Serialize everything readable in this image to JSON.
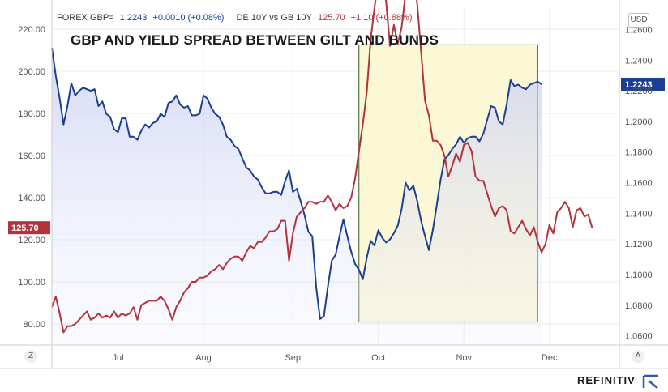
{
  "legend": {
    "gbp_name": "FOREX GBP=",
    "gbp_value": "1.2243",
    "gbp_change": "+0.0010 (+0.08%)",
    "spread_name": "DE 10Y vs GB 10Y",
    "spread_value": "125.70",
    "spread_change": "+1.10 (+0.88%)"
  },
  "currency_button": "USD",
  "scale_button_left": "Z",
  "scale_button_right": "A",
  "brand": "REFINITIV",
  "colors": {
    "gbp": "#1c3f94",
    "spread": "#b2333d",
    "highlight_fill": "#fbf7cf",
    "highlight_stroke": "#3a5a2a",
    "gbp_label_bg": "#1c3f94",
    "spread_label_bg": "#b2333d"
  },
  "chart_data": {
    "type": "line",
    "title": "GBP AND YIELD SPREAD BETWEEN GILT AND BUNDS",
    "x_tick_labels": [
      "Jul",
      "Aug",
      "Sep",
      "Oct",
      "Nov",
      "Dec"
    ],
    "x_tick_index": [
      17,
      39,
      62,
      84,
      106,
      128
    ],
    "left_axis": {
      "range": [
        70,
        230
      ],
      "ticks": [
        "80.00",
        "100.00",
        "120.00",
        "140.00",
        "160.00",
        "180.00",
        "200.00",
        "220.00"
      ],
      "current_label": "125.70"
    },
    "right_axis": {
      "range": [
        1.054,
        1.274
      ],
      "ticks": [
        "1.0600",
        "1.0800",
        "1.1000",
        "1.1200",
        "1.1400",
        "1.1600",
        "1.1800",
        "1.2000",
        "1.2200",
        "1.2400",
        "1.2600"
      ],
      "current_label": "1.2243"
    },
    "highlight": {
      "x_from": 79,
      "x_to": 125,
      "y_from": 1.069,
      "y_to": 1.25
    },
    "grid": true,
    "series": [
      {
        "name": "FOREX GBP=",
        "axis": "right",
        "values": [
          1.248,
          1.23,
          1.215,
          1.198,
          1.21,
          1.225,
          1.217,
          1.22,
          1.222,
          1.221,
          1.22,
          1.221,
          1.21,
          1.213,
          1.205,
          1.203,
          1.195,
          1.193,
          1.202,
          1.202,
          1.19,
          1.19,
          1.188,
          1.194,
          1.198,
          1.196,
          1.199,
          1.2,
          1.205,
          1.203,
          1.212,
          1.213,
          1.217,
          1.211,
          1.209,
          1.21,
          1.204,
          1.204,
          1.205,
          1.217,
          1.215,
          1.209,
          1.205,
          1.203,
          1.198,
          1.19,
          1.188,
          1.184,
          1.182,
          1.176,
          1.17,
          1.168,
          1.164,
          1.162,
          1.157,
          1.153,
          1.153,
          1.154,
          1.154,
          1.152,
          1.161,
          1.168,
          1.154,
          1.156,
          1.148,
          1.139,
          1.128,
          1.125,
          1.092,
          1.071,
          1.073,
          1.092,
          1.109,
          1.113,
          1.125,
          1.136,
          1.125,
          1.115,
          1.107,
          1.103,
          1.097,
          1.111,
          1.122,
          1.119,
          1.129,
          1.124,
          1.121,
          1.123,
          1.127,
          1.132,
          1.143,
          1.16,
          1.155,
          1.158,
          1.148,
          1.135,
          1.125,
          1.116,
          1.129,
          1.145,
          1.162,
          1.175,
          1.178,
          1.182,
          1.185,
          1.19,
          1.186,
          1.189,
          1.19,
          1.19,
          1.187,
          1.192,
          1.201,
          1.21,
          1.209,
          1.2,
          1.198,
          1.211,
          1.227,
          1.223,
          1.224,
          1.222,
          1.221,
          1.224,
          1.225,
          1.226,
          1.2243
        ]
      },
      {
        "name": "DE 10Y vs GB 10Y",
        "axis": "left",
        "values": [
          88,
          93,
          85,
          76,
          79,
          79,
          80,
          82,
          84,
          86,
          82,
          83,
          85,
          83,
          84,
          83,
          86,
          83,
          85,
          84,
          85,
          88,
          82,
          89,
          90,
          91,
          91,
          91,
          93,
          91,
          87,
          82,
          88,
          91,
          95,
          97,
          100,
          100,
          102,
          102,
          103,
          105,
          106,
          108,
          106,
          109,
          111,
          112,
          112,
          110,
          114,
          117,
          116,
          119,
          119,
          121,
          124,
          124,
          125,
          129,
          129,
          110,
          123,
          131,
          133,
          135,
          138,
          138,
          137,
          138,
          138,
          141,
          138,
          134,
          137,
          135,
          136,
          140,
          149,
          162,
          175,
          190,
          215,
          230,
          243,
          248,
          233,
          212,
          222,
          213,
          221,
          237,
          242,
          245,
          232,
          209,
          186,
          179,
          167,
          167,
          165,
          160,
          150,
          155,
          161,
          157,
          165,
          166,
          162,
          150,
          148,
          148,
          142,
          136,
          131,
          135,
          136,
          134,
          124,
          123,
          126,
          129,
          125,
          122,
          126,
          119,
          114,
          118,
          127,
          123,
          133,
          135,
          138,
          135,
          126,
          134,
          135,
          131,
          132,
          125.7
        ]
      }
    ]
  }
}
